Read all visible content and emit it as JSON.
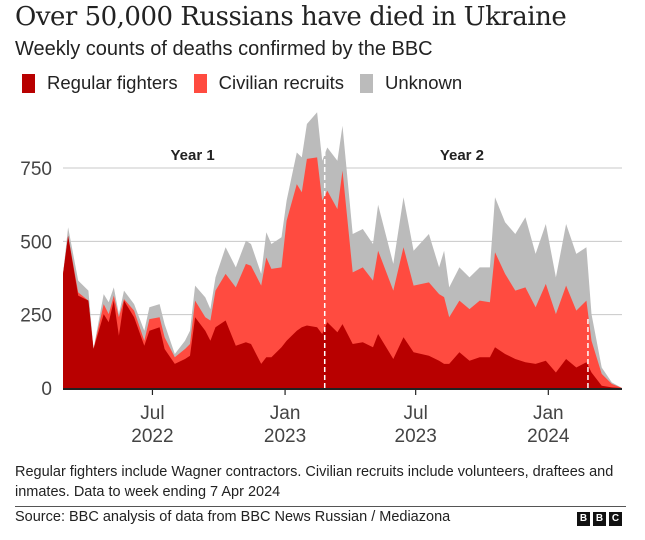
{
  "header": {
    "title": "Over 50,000 Russians have died in Ukraine",
    "subtitle": "Weekly counts of deaths confirmed by the BBC"
  },
  "legend": [
    {
      "label": "Regular fighters",
      "color": "#b80000"
    },
    {
      "label": "Civilian recruits",
      "color": "#ff4b40"
    },
    {
      "label": "Unknown",
      "color": "#bbbbbb"
    }
  ],
  "chart_data": {
    "type": "area",
    "stacked": true,
    "title": "Over 50,000 Russians have died in Ukraine",
    "subtitle": "Weekly counts of deaths confirmed by the BBC",
    "xlabel": "",
    "ylabel": "",
    "xlim": [
      0,
      110
    ],
    "ylim": [
      0,
      950
    ],
    "yticks": [
      0,
      250,
      500,
      750
    ],
    "ytick_labels": [
      "0",
      "250",
      "500",
      "750"
    ],
    "xticks": [
      {
        "week": 17.6,
        "month": "Jul",
        "year": "2022"
      },
      {
        "week": 43.7,
        "month": "Jan",
        "year": "2023"
      },
      {
        "week": 69.4,
        "month": "Jul",
        "year": "2023"
      },
      {
        "week": 95.5,
        "month": "Jan",
        "year": "2024"
      }
    ],
    "annotations": [
      {
        "label": "Year 1",
        "week": 25.5
      },
      {
        "label": "Year 2",
        "week": 78.5
      }
    ],
    "year_markers": [
      51.5,
      103.3
    ],
    "grid": true,
    "legend_position": "top-left",
    "x": [
      0,
      1,
      3,
      5,
      6,
      8,
      9,
      10,
      11,
      12,
      14,
      16,
      17,
      19,
      20,
      22,
      24,
      25,
      26,
      28,
      29,
      30,
      32,
      34,
      36,
      37,
      39,
      40,
      41,
      43,
      44,
      46,
      47,
      48,
      50,
      51,
      52,
      54,
      55,
      57,
      59,
      61,
      62,
      65,
      67,
      69,
      72,
      74,
      75,
      76,
      78,
      80,
      82,
      84,
      85,
      87,
      89,
      91,
      93,
      95,
      97,
      99,
      101,
      103,
      104,
      106,
      108,
      110
    ],
    "series": [
      {
        "name": "Regular fighters",
        "values": [
          389,
          519,
          315,
          298,
          133,
          252,
          224,
          298,
          178,
          298,
          241,
          144,
          195,
          207,
          133,
          82,
          99,
          110,
          241,
          195,
          161,
          207,
          230,
          144,
          156,
          150,
          82,
          105,
          105,
          139,
          161,
          195,
          207,
          213,
          207,
          184,
          224,
          190,
          218,
          150,
          156,
          139,
          184,
          99,
          173,
          122,
          110,
          93,
          82,
          82,
          122,
          93,
          105,
          105,
          139,
          116,
          99,
          88,
          82,
          93,
          53,
          99,
          70,
          88,
          53,
          8,
          2,
          0
        ]
      },
      {
        "name": "Civilian recruits",
        "values": [
          0,
          0,
          11,
          0,
          0,
          34,
          28,
          17,
          63,
          5,
          23,
          17,
          40,
          34,
          40,
          23,
          34,
          40,
          57,
          46,
          69,
          125,
          159,
          199,
          267,
          267,
          267,
          340,
          301,
          272,
          409,
          500,
          460,
          568,
          579,
          455,
          449,
          420,
          523,
          244,
          255,
          227,
          284,
          233,
          307,
          227,
          250,
          227,
          228,
          159,
          176,
          176,
          193,
          187,
          324,
          273,
          233,
          255,
          193,
          262,
          199,
          250,
          194,
          210,
          108,
          40,
          12,
          0
        ]
      },
      {
        "name": "Unknown",
        "values": [
          0,
          29,
          40,
          34,
          0,
          34,
          40,
          28,
          11,
          29,
          22,
          34,
          40,
          45,
          45,
          11,
          28,
          45,
          51,
          68,
          39,
          45,
          91,
          68,
          79,
          74,
          40,
          86,
          85,
          103,
          69,
          108,
          119,
          119,
          154,
          136,
          147,
          165,
          153,
          131,
          131,
          125,
          157,
          91,
          170,
          119,
          165,
          91,
          158,
          102,
          113,
          108,
          113,
          119,
          187,
          176,
          193,
          239,
          182,
          204,
          125,
          210,
          193,
          182,
          91,
          22,
          5,
          0
        ]
      }
    ]
  },
  "footnote": "Regular fighters include Wagner contractors. Civilian recruits include volunteers, draftees and inmates. Data to week ending 7 Apr 2024",
  "source": "Source: BBC analysis of data from BBC News Russian / Mediazona",
  "logo": [
    "B",
    "B",
    "C"
  ]
}
